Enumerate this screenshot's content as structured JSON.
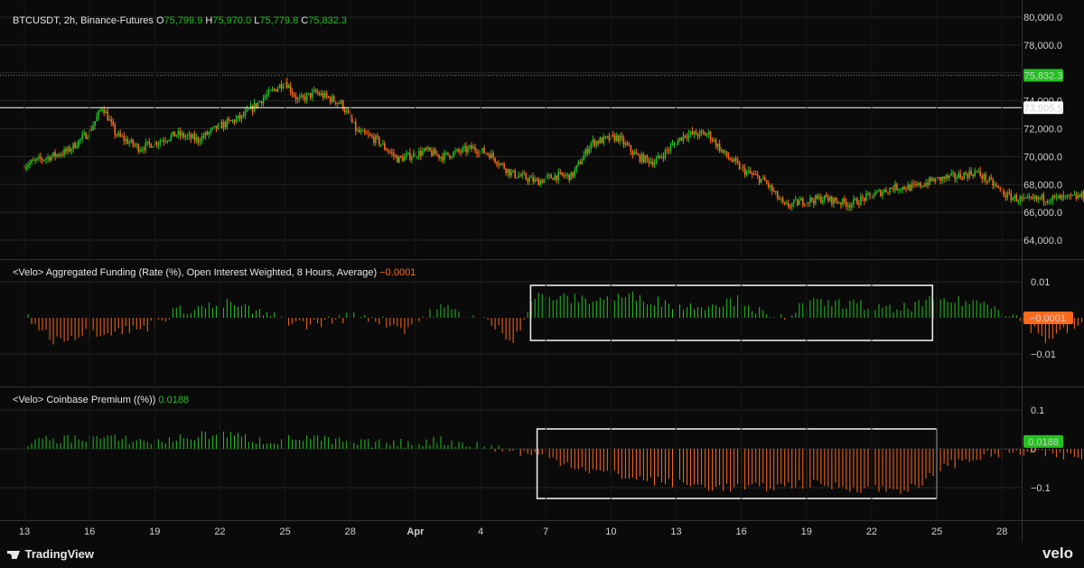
{
  "header": {
    "symbol": "BTCUSDT, 2h, Binance-Futures",
    "open_label": "O",
    "open": "75,799.9",
    "high_label": "H",
    "high": "75,970.0",
    "low_label": "L",
    "low": "75,779.8",
    "close_label": "C",
    "close": "75,832.3"
  },
  "funding_legend": {
    "title": "<Velo> Aggregated Funding (Rate (%), Open Interest Weighted, 8 Hours, Average)",
    "value": "−0.0001"
  },
  "premium_legend": {
    "title": "<Velo> Coinbase Premium ((%))",
    "value": "0.0188"
  },
  "footer": {
    "brand": "TradingView",
    "watermark": "velo"
  },
  "colors": {
    "up": "#22c21f",
    "down": "#ff6a1a",
    "background": "#0a0a0a",
    "grid": "#262626",
    "box": "#e8e8e8"
  },
  "chart_data": [
    {
      "type": "candlestick",
      "title": "BTCUSDT, 2h, Binance-Futures",
      "x_ticks": [
        "13",
        "16",
        "19",
        "22",
        "25",
        "28",
        "Apr",
        "4",
        "7",
        "10",
        "13",
        "16",
        "19",
        "22",
        "25",
        "28"
      ],
      "y_ticks": [
        "80,000.0",
        "78,000.0",
        "76,000.0",
        "74,000.0",
        "72,000.0",
        "70,000.0",
        "68,000.0",
        "66,000.0",
        "64,000.0"
      ],
      "ylim": [
        63000,
        80600
      ],
      "last_price": "75,832.3",
      "horizontal_line": "73,505.5",
      "path_points": [
        [
          0,
          69400
        ],
        [
          2,
          70400
        ],
        [
          3,
          71800
        ],
        [
          3.6,
          73600
        ],
        [
          4.2,
          71600
        ],
        [
          5.3,
          70600
        ],
        [
          7,
          71600
        ],
        [
          8,
          71200
        ],
        [
          9,
          72200
        ],
        [
          10,
          72800
        ],
        [
          11,
          74200
        ],
        [
          12,
          75400
        ],
        [
          12.6,
          74000
        ],
        [
          13.4,
          74600
        ],
        [
          14.6,
          73800
        ],
        [
          15.3,
          71800
        ],
        [
          16.2,
          71200
        ],
        [
          17.2,
          69800
        ],
        [
          18.5,
          70400
        ],
        [
          19.2,
          70000
        ],
        [
          20.6,
          70600
        ],
        [
          21.4,
          70200
        ],
        [
          22.4,
          68800
        ],
        [
          23.6,
          68200
        ],
        [
          24.4,
          68600
        ],
        [
          25.2,
          68600
        ],
        [
          26.1,
          71000
        ],
        [
          27.3,
          71400
        ],
        [
          28.2,
          70000
        ],
        [
          29,
          69600
        ],
        [
          30.4,
          71600
        ],
        [
          31.5,
          71600
        ],
        [
          32.2,
          70200
        ],
        [
          33.1,
          69000
        ],
        [
          34.1,
          68200
        ],
        [
          35,
          66400
        ],
        [
          35.8,
          66800
        ],
        [
          36.8,
          67000
        ],
        [
          38,
          66600
        ],
        [
          39,
          67200
        ],
        [
          40,
          67800
        ],
        [
          41,
          67800
        ],
        [
          41.8,
          68300
        ],
        [
          43,
          68600
        ],
        [
          43.8,
          68900
        ],
        [
          44.6,
          68000
        ],
        [
          45.2,
          67200
        ],
        [
          46.1,
          66800
        ],
        [
          46.8,
          67000
        ],
        [
          48,
          67000
        ],
        [
          49.2,
          67300
        ],
        [
          50.2,
          67700
        ],
        [
          51.3,
          68400
        ],
        [
          52.1,
          69600
        ],
        [
          53.1,
          70400
        ],
        [
          53.8,
          69000
        ],
        [
          54.3,
          68200
        ],
        [
          55,
          68800
        ],
        [
          56,
          69800
        ],
        [
          57.2,
          71400
        ],
        [
          58.2,
          72000
        ],
        [
          59.2,
          71500
        ],
        [
          60.2,
          72600
        ],
        [
          61.2,
          73200
        ],
        [
          62.1,
          73100
        ],
        [
          63.2,
          72700
        ],
        [
          63.9,
          72000
        ],
        [
          64.7,
          71200
        ],
        [
          65.8,
          71200
        ],
        [
          66.8,
          72000
        ],
        [
          67.6,
          73600
        ],
        [
          68.6,
          75000
        ],
        [
          69.6,
          74700
        ],
        [
          70.6,
          74400
        ],
        [
          71.3,
          74000
        ],
        [
          72.2,
          74400
        ],
        [
          73.2,
          74800
        ],
        [
          74.4,
          75300
        ],
        [
          75,
          76800
        ],
        [
          75.9,
          78000
        ],
        [
          76.7,
          77600
        ],
        [
          77.3,
          76800
        ],
        [
          78.2,
          76000
        ],
        [
          79,
          75400
        ],
        [
          80.2,
          75800
        ],
        [
          81.1,
          74400
        ],
        [
          81.9,
          75600
        ],
        [
          82.9,
          76200
        ],
        [
          83.6,
          76400
        ],
        [
          84.5,
          75800
        ]
      ],
      "x_axis_days_from_first_tick": "0 = Mar 13",
      "vertical_range_days": [
        -1.2,
        90
      ]
    },
    {
      "type": "bar",
      "title": "<Velo> Aggregated Funding (Rate (%), Open Interest Weighted, 8 Hours, Average)",
      "y_ticks": [
        "0.01",
        "−0.01"
      ],
      "ylim": [
        -0.0175,
        0.0105
      ],
      "last_value": "−0.0001",
      "value_path": [
        [
          0,
          0.0012
        ],
        [
          1.3,
          -0.006
        ],
        [
          3,
          -0.004
        ],
        [
          5.5,
          -0.003
        ],
        [
          7,
          0.002
        ],
        [
          9.5,
          0.004
        ],
        [
          11,
          0.001
        ],
        [
          13,
          -0.002
        ],
        [
          15.5,
          0.001
        ],
        [
          17.5,
          -0.003
        ],
        [
          19.2,
          0.003
        ],
        [
          21.3,
          -0.001
        ],
        [
          22.5,
          -0.006
        ],
        [
          23.5,
          0.006
        ],
        [
          26,
          0.005
        ],
        [
          28,
          0.006
        ],
        [
          30.5,
          0.003
        ],
        [
          33,
          0.005
        ],
        [
          34.5,
          -0.001
        ],
        [
          36,
          0.004
        ],
        [
          38,
          0.004
        ],
        [
          40,
          0.002
        ],
        [
          42,
          0.005
        ],
        [
          44.5,
          0.004
        ],
        [
          46,
          -0.001
        ],
        [
          47,
          -0.006
        ],
        [
          48.5,
          -0.002
        ],
        [
          50,
          0.004
        ],
        [
          52,
          0.002
        ],
        [
          54,
          0.004
        ],
        [
          55.5,
          -0.004
        ],
        [
          57,
          0.005
        ],
        [
          59,
          0.006
        ],
        [
          60,
          0.002
        ],
        [
          61.5,
          0.004
        ],
        [
          63,
          0.002
        ],
        [
          65,
          0.001
        ],
        [
          66,
          -0.007
        ],
        [
          68,
          -0.005
        ],
        [
          69,
          -0.012
        ],
        [
          70,
          -0.015
        ],
        [
          71,
          -0.008
        ],
        [
          72.5,
          -0.004
        ],
        [
          74,
          -0.001
        ],
        [
          75,
          -0.003
        ],
        [
          76.2,
          -0.01
        ],
        [
          77.5,
          -0.004
        ],
        [
          78.5,
          -0.006
        ],
        [
          80,
          -0.002
        ],
        [
          81,
          -0.003
        ],
        [
          82.5,
          -0.005
        ],
        [
          83.5,
          -0.008
        ],
        [
          84.5,
          -0.0001
        ]
      ],
      "highlight_boxes_days": [
        [
          23.3,
          41.8
        ],
        [
          60.2,
          84.8
        ]
      ]
    },
    {
      "type": "bar",
      "title": "<Velo> Coinbase Premium ((%))",
      "y_ticks": [
        "0.1",
        "0",
        "−0.1"
      ],
      "ylim": [
        -0.165,
        0.135
      ],
      "last_value": "0.0188",
      "value_path": [
        [
          0,
          0.018
        ],
        [
          3,
          0.03
        ],
        [
          6,
          0.018
        ],
        [
          9,
          0.04
        ],
        [
          11,
          0.02
        ],
        [
          13,
          0.028
        ],
        [
          15,
          0.015
        ],
        [
          17,
          0.012
        ],
        [
          19,
          0.022
        ],
        [
          21,
          0.008
        ],
        [
          22.5,
          -0.005
        ],
        [
          24,
          -0.02
        ],
        [
          26,
          -0.055
        ],
        [
          28,
          -0.075
        ],
        [
          30,
          -0.09
        ],
        [
          32,
          -0.1
        ],
        [
          34,
          -0.1
        ],
        [
          36,
          -0.09
        ],
        [
          38,
          -0.1
        ],
        [
          40,
          -0.105
        ],
        [
          41.3,
          -0.1
        ],
        [
          42,
          -0.05
        ],
        [
          44,
          -0.02
        ],
        [
          46,
          -0.01
        ],
        [
          48,
          -0.02
        ],
        [
          50,
          -0.02
        ],
        [
          52,
          -0.035
        ],
        [
          54,
          -0.008
        ],
        [
          56,
          0.01
        ],
        [
          58,
          -0.005
        ],
        [
          59.5,
          0.02
        ],
        [
          60.5,
          0.045
        ],
        [
          62.5,
          0.055
        ],
        [
          64.5,
          0.05
        ],
        [
          66.5,
          0.045
        ],
        [
          68.5,
          0.06
        ],
        [
          69.5,
          0.075
        ],
        [
          71,
          0.05
        ],
        [
          72.5,
          0.035
        ],
        [
          74.5,
          0.06
        ],
        [
          76.5,
          0.055
        ],
        [
          78.5,
          0.045
        ],
        [
          80.5,
          0.05
        ],
        [
          82.5,
          0.06
        ],
        [
          84.5,
          0.018
        ]
      ],
      "highlight_boxes_days": [
        [
          23.6,
          42.0
        ],
        [
          59.5,
          84.0
        ]
      ]
    }
  ]
}
